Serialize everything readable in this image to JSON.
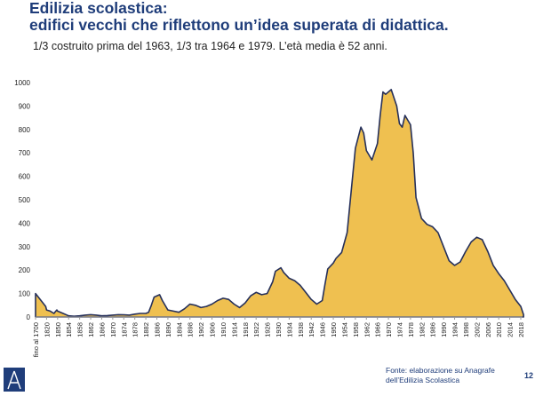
{
  "header": {
    "title_line1": "Edilizia scolastica:",
    "title_line2": "edifici vecchi che riflettono un’idea superata di didattica.",
    "subtitle": "1/3 costruito prima del 1963, 1/3 tra 1964 e 1979. L’età media è 52 anni."
  },
  "footer": {
    "source_line1": "Fonte: elaborazione su Anagrafe",
    "source_line2": "dell’Edilizia Scolastica",
    "page_number": "12",
    "logo_letter": "A"
  },
  "colors": {
    "title": "#1f3d7a",
    "area_fill": "#efc050",
    "area_stroke": "#26305a"
  },
  "chart_data": {
    "type": "area",
    "title": "",
    "xlabel": "",
    "ylabel": "",
    "ylim": [
      0,
      1000
    ],
    "y_ticks": [
      0,
      100,
      200,
      300,
      400,
      500,
      600,
      700,
      800,
      900,
      1000
    ],
    "grid": false,
    "x_tick_labels": [
      "fino al 1700",
      "1820",
      "1850",
      "1854",
      "1858",
      "1862",
      "1866",
      "1870",
      "1874",
      "1878",
      "1882",
      "1886",
      "1890",
      "1894",
      "1898",
      "1902",
      "1906",
      "1910",
      "1914",
      "1918",
      "1922",
      "1926",
      "1930",
      "1934",
      "1938",
      "1942",
      "1946",
      "1950",
      "1954",
      "1958",
      "1962",
      "1966",
      "1970",
      "1974",
      "1978",
      "1982",
      "1986",
      "1990",
      "1994",
      "1998",
      "2002",
      "2006",
      "2010",
      "2014",
      "2018"
    ],
    "x_tick_years": [
      1700,
      1820,
      1850,
      1854,
      1858,
      1862,
      1866,
      1870,
      1874,
      1878,
      1882,
      1886,
      1890,
      1894,
      1898,
      1902,
      1906,
      1910,
      1914,
      1918,
      1922,
      1926,
      1930,
      1934,
      1938,
      1942,
      1946,
      1950,
      1954,
      1958,
      1962,
      1966,
      1970,
      1974,
      1978,
      1982,
      1986,
      1990,
      1994,
      1998,
      2002,
      2006,
      2010,
      2014,
      2018
    ],
    "series": [
      {
        "points": [
          [
            "fino al 1700",
            100
          ],
          [
            "1810",
            45
          ],
          [
            "1820",
            30
          ],
          [
            "1830",
            25
          ],
          [
            "1840",
            15
          ],
          [
            "1845",
            25
          ],
          [
            "1848",
            30
          ],
          [
            "1850",
            25
          ],
          [
            "1852",
            15
          ],
          [
            "1854",
            5
          ],
          [
            "1856",
            3
          ],
          [
            "1858",
            5
          ],
          [
            "1860",
            8
          ],
          [
            "1862",
            10
          ],
          [
            "1864",
            8
          ],
          [
            "1866",
            5
          ],
          [
            "1868",
            6
          ],
          [
            "1870",
            8
          ],
          [
            "1872",
            10
          ],
          [
            "1874",
            9
          ],
          [
            "1876",
            8
          ],
          [
            "1878",
            12
          ],
          [
            "1880",
            15
          ],
          [
            "1882",
            15
          ],
          [
            "1883",
            20
          ],
          [
            "1884",
            50
          ],
          [
            "1885",
            85
          ],
          [
            "1887",
            95
          ],
          [
            "1888",
            70
          ],
          [
            "1890",
            30
          ],
          [
            "1892",
            25
          ],
          [
            "1894",
            20
          ],
          [
            "1896",
            35
          ],
          [
            "1898",
            55
          ],
          [
            "1900",
            50
          ],
          [
            "1902",
            40
          ],
          [
            "1904",
            45
          ],
          [
            "1906",
            55
          ],
          [
            "1908",
            70
          ],
          [
            "1910",
            80
          ],
          [
            "1912",
            75
          ],
          [
            "1914",
            55
          ],
          [
            "1916",
            40
          ],
          [
            "1918",
            60
          ],
          [
            "1920",
            90
          ],
          [
            "1922",
            105
          ],
          [
            "1924",
            95
          ],
          [
            "1926",
            100
          ],
          [
            "1928",
            150
          ],
          [
            "1929",
            195
          ],
          [
            "1931",
            210
          ],
          [
            "1932",
            190
          ],
          [
            "1934",
            165
          ],
          [
            "1936",
            155
          ],
          [
            "1938",
            135
          ],
          [
            "1940",
            105
          ],
          [
            "1942",
            75
          ],
          [
            "1944",
            55
          ],
          [
            "1946",
            70
          ],
          [
            "1947",
            140
          ],
          [
            "1948",
            205
          ],
          [
            "1950",
            230
          ],
          [
            "1951",
            250
          ],
          [
            "1953",
            275
          ],
          [
            "1955",
            360
          ],
          [
            "1957",
            600
          ],
          [
            "1958",
            720
          ],
          [
            "1960",
            810
          ],
          [
            "1961",
            785
          ],
          [
            "1962",
            710
          ],
          [
            "1964",
            670
          ],
          [
            "1966",
            740
          ],
          [
            "1967",
            860
          ],
          [
            "1968",
            960
          ],
          [
            "1969",
            950
          ],
          [
            "1971",
            970
          ],
          [
            "1973",
            900
          ],
          [
            "1974",
            825
          ],
          [
            "1975",
            810
          ],
          [
            "1976",
            860
          ],
          [
            "1978",
            820
          ],
          [
            "1979",
            700
          ],
          [
            "1980",
            510
          ],
          [
            "1982",
            420
          ],
          [
            "1984",
            395
          ],
          [
            "1986",
            385
          ],
          [
            "1988",
            360
          ],
          [
            "1990",
            300
          ],
          [
            "1992",
            240
          ],
          [
            "1994",
            220
          ],
          [
            "1996",
            235
          ],
          [
            "1998",
            280
          ],
          [
            "2000",
            320
          ],
          [
            "2002",
            340
          ],
          [
            "2004",
            330
          ],
          [
            "2006",
            280
          ],
          [
            "2008",
            220
          ],
          [
            "2010",
            185
          ],
          [
            "2012",
            155
          ],
          [
            "2014",
            115
          ],
          [
            "2016",
            75
          ],
          [
            "2018",
            45
          ],
          [
            "2019",
            10
          ]
        ]
      }
    ]
  }
}
